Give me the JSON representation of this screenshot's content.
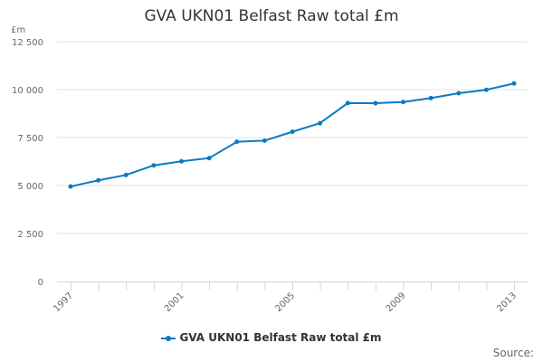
{
  "chart_data": {
    "type": "line",
    "title": "GVA UKN01 Belfast Raw total £m",
    "ylabel": "£m",
    "xlabel": "",
    "x": [
      1997,
      1998,
      1999,
      2000,
      2001,
      2002,
      2003,
      2004,
      2005,
      2006,
      2007,
      2008,
      2009,
      2010,
      2011,
      2012,
      2013
    ],
    "x_tick_labels": [
      "1997",
      "2001",
      "2005",
      "2009",
      "2013"
    ],
    "y_tick_labels": [
      "0",
      "2 500",
      "5 000",
      "7 500",
      "10 000",
      "12 500"
    ],
    "y_ticks": [
      0,
      2500,
      5000,
      7500,
      10000,
      12500
    ],
    "ylim": [
      0,
      12500
    ],
    "grid": true,
    "legend_position": "bottom",
    "color": "#0a7ac4",
    "series": [
      {
        "name": "GVA UKN01 Belfast Raw total £m",
        "values": [
          4950,
          5270,
          5550,
          6050,
          6260,
          6430,
          7280,
          7340,
          7800,
          8250,
          9300,
          9290,
          9350,
          9560,
          9810,
          9990,
          10320
        ]
      }
    ]
  },
  "source_label": "Source:"
}
